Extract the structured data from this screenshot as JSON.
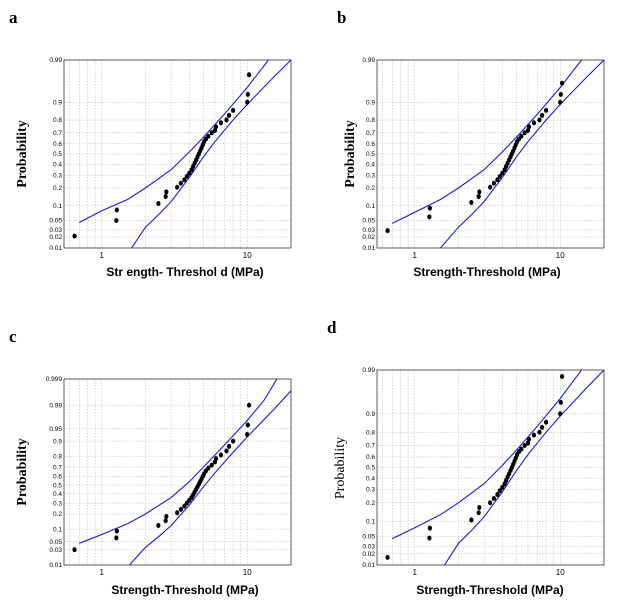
{
  "chart_data": [
    {
      "type": "scatter",
      "panel_label": "a",
      "ylabel": "Probability",
      "ylabel_weight": "bold",
      "xlabel": "Str ength- Threshol d (MPa)",
      "xscale": "log",
      "yscale": "probability",
      "xlim": [
        0.55,
        20
      ],
      "ylim": [
        0.01,
        0.99
      ],
      "grid": true,
      "x_ticks": [
        "1",
        "10"
      ],
      "y_ticks": [
        "0.01",
        "0.02",
        "0.03",
        "0.05",
        "0.1",
        "0.2",
        "0.3",
        "0.4",
        "0.5",
        "0.6",
        "0.7",
        "0.8",
        "0.9",
        "0.99"
      ],
      "points": [
        {
          "x": 0.65,
          "y": 0.021
        },
        {
          "x": 1.26,
          "y": 0.05
        },
        {
          "x": 1.27,
          "y": 0.083
        },
        {
          "x": 2.45,
          "y": 0.11
        },
        {
          "x": 2.75,
          "y": 0.146
        },
        {
          "x": 2.78,
          "y": 0.174
        },
        {
          "x": 3.3,
          "y": 0.205
        },
        {
          "x": 3.5,
          "y": 0.235
        },
        {
          "x": 3.7,
          "y": 0.262
        },
        {
          "x": 3.85,
          "y": 0.29
        },
        {
          "x": 4.0,
          "y": 0.318
        },
        {
          "x": 4.15,
          "y": 0.348
        },
        {
          "x": 4.25,
          "y": 0.38
        },
        {
          "x": 4.35,
          "y": 0.41
        },
        {
          "x": 4.45,
          "y": 0.44
        },
        {
          "x": 4.55,
          "y": 0.47
        },
        {
          "x": 4.65,
          "y": 0.5
        },
        {
          "x": 4.75,
          "y": 0.53
        },
        {
          "x": 4.85,
          "y": 0.56
        },
        {
          "x": 4.95,
          "y": 0.59
        },
        {
          "x": 5.05,
          "y": 0.62
        },
        {
          "x": 5.2,
          "y": 0.645
        },
        {
          "x": 5.4,
          "y": 0.67
        },
        {
          "x": 5.7,
          "y": 0.7
        },
        {
          "x": 6.0,
          "y": 0.72
        },
        {
          "x": 6.1,
          "y": 0.75
        },
        {
          "x": 6.6,
          "y": 0.78
        },
        {
          "x": 7.2,
          "y": 0.8
        },
        {
          "x": 7.5,
          "y": 0.83
        },
        {
          "x": 8.0,
          "y": 0.86
        },
        {
          "x": 10.0,
          "y": 0.9
        },
        {
          "x": 10.1,
          "y": 0.93
        },
        {
          "x": 10.3,
          "y": 0.975
        }
      ],
      "band_upper": [
        {
          "x": 0.7,
          "y": 0.045
        },
        {
          "x": 1.0,
          "y": 0.08
        },
        {
          "x": 1.5,
          "y": 0.13
        },
        {
          "x": 2.0,
          "y": 0.2
        },
        {
          "x": 3.0,
          "y": 0.35
        },
        {
          "x": 4.0,
          "y": 0.52
        },
        {
          "x": 5.0,
          "y": 0.66
        },
        {
          "x": 7.0,
          "y": 0.84
        },
        {
          "x": 10.0,
          "y": 0.95
        },
        {
          "x": 14.0,
          "y": 0.99
        }
      ],
      "band_lower": [
        {
          "x": 1.6,
          "y": 0.01
        },
        {
          "x": 2.0,
          "y": 0.035
        },
        {
          "x": 2.5,
          "y": 0.07
        },
        {
          "x": 3.0,
          "y": 0.12
        },
        {
          "x": 4.0,
          "y": 0.28
        },
        {
          "x": 5.0,
          "y": 0.47
        },
        {
          "x": 6.0,
          "y": 0.62
        },
        {
          "x": 8.0,
          "y": 0.8
        },
        {
          "x": 10.0,
          "y": 0.89
        },
        {
          "x": 15.0,
          "y": 0.97
        },
        {
          "x": 20.0,
          "y": 0.99
        }
      ]
    },
    {
      "type": "scatter",
      "panel_label": "b",
      "ylabel": "Probability",
      "ylabel_weight": "bold",
      "xlabel": "Strength-Threshold (MPa)",
      "xscale": "log",
      "yscale": "probability",
      "xlim": [
        0.55,
        20
      ],
      "ylim": [
        0.01,
        0.99
      ],
      "grid": true,
      "x_ticks": [
        "1",
        "10"
      ],
      "y_ticks": [
        "0.01",
        "0.02",
        "0.03",
        "0.05",
        "0.1",
        "0.2",
        "0.3",
        "0.4",
        "0.5",
        "0.6",
        "0.7",
        "0.8",
        "0.9",
        "0.99"
      ],
      "points": [
        {
          "x": 0.65,
          "y": 0.029
        },
        {
          "x": 1.26,
          "y": 0.06
        },
        {
          "x": 1.27,
          "y": 0.09
        },
        {
          "x": 2.45,
          "y": 0.115
        },
        {
          "x": 2.75,
          "y": 0.146
        },
        {
          "x": 2.78,
          "y": 0.174
        },
        {
          "x": 3.3,
          "y": 0.205
        },
        {
          "x": 3.5,
          "y": 0.235
        },
        {
          "x": 3.7,
          "y": 0.262
        },
        {
          "x": 3.85,
          "y": 0.29
        },
        {
          "x": 4.0,
          "y": 0.318
        },
        {
          "x": 4.15,
          "y": 0.348
        },
        {
          "x": 4.25,
          "y": 0.38
        },
        {
          "x": 4.35,
          "y": 0.41
        },
        {
          "x": 4.45,
          "y": 0.44
        },
        {
          "x": 4.55,
          "y": 0.47
        },
        {
          "x": 4.65,
          "y": 0.5
        },
        {
          "x": 4.75,
          "y": 0.53
        },
        {
          "x": 4.85,
          "y": 0.56
        },
        {
          "x": 4.95,
          "y": 0.59
        },
        {
          "x": 5.05,
          "y": 0.62
        },
        {
          "x": 5.2,
          "y": 0.645
        },
        {
          "x": 5.4,
          "y": 0.67
        },
        {
          "x": 5.7,
          "y": 0.7
        },
        {
          "x": 6.0,
          "y": 0.72
        },
        {
          "x": 6.1,
          "y": 0.75
        },
        {
          "x": 6.6,
          "y": 0.78
        },
        {
          "x": 7.2,
          "y": 0.8
        },
        {
          "x": 7.5,
          "y": 0.83
        },
        {
          "x": 8.0,
          "y": 0.86
        },
        {
          "x": 10.0,
          "y": 0.9
        },
        {
          "x": 10.1,
          "y": 0.93
        },
        {
          "x": 10.3,
          "y": 0.96
        }
      ],
      "band_upper": [
        {
          "x": 0.7,
          "y": 0.043
        },
        {
          "x": 1.0,
          "y": 0.075
        },
        {
          "x": 1.5,
          "y": 0.13
        },
        {
          "x": 2.0,
          "y": 0.2
        },
        {
          "x": 3.0,
          "y": 0.35
        },
        {
          "x": 4.0,
          "y": 0.52
        },
        {
          "x": 5.0,
          "y": 0.66
        },
        {
          "x": 7.0,
          "y": 0.84
        },
        {
          "x": 10.0,
          "y": 0.95
        },
        {
          "x": 14.0,
          "y": 0.99
        }
      ],
      "band_lower": [
        {
          "x": 1.5,
          "y": 0.01
        },
        {
          "x": 2.0,
          "y": 0.035
        },
        {
          "x": 2.5,
          "y": 0.07
        },
        {
          "x": 3.0,
          "y": 0.12
        },
        {
          "x": 4.0,
          "y": 0.28
        },
        {
          "x": 5.0,
          "y": 0.47
        },
        {
          "x": 6.0,
          "y": 0.62
        },
        {
          "x": 8.0,
          "y": 0.8
        },
        {
          "x": 10.0,
          "y": 0.89
        },
        {
          "x": 15.0,
          "y": 0.97
        },
        {
          "x": 20.0,
          "y": 0.99
        }
      ]
    },
    {
      "type": "scatter",
      "panel_label": "c",
      "ylabel": "Probability",
      "ylabel_weight": "bold",
      "xlabel": "Strength-Threshold (MPa)",
      "xscale": "log",
      "yscale": "probability",
      "xlim": [
        0.55,
        20
      ],
      "ylim": [
        0.01,
        0.999
      ],
      "grid": true,
      "x_ticks": [
        "1",
        "10"
      ],
      "y_ticks": [
        "0.01",
        "0.03",
        "0.05",
        "0.1",
        "0.2",
        "0.3",
        "0.4",
        "0.5",
        "0.6",
        "0.7",
        "0.8",
        "0.9",
        "0.95",
        "0.99",
        "0.999"
      ],
      "points": [
        {
          "x": 0.65,
          "y": 0.03
        },
        {
          "x": 1.26,
          "y": 0.062
        },
        {
          "x": 1.27,
          "y": 0.09
        },
        {
          "x": 2.45,
          "y": 0.12
        },
        {
          "x": 2.75,
          "y": 0.15
        },
        {
          "x": 2.78,
          "y": 0.18
        },
        {
          "x": 3.3,
          "y": 0.21
        },
        {
          "x": 3.5,
          "y": 0.24
        },
        {
          "x": 3.7,
          "y": 0.27
        },
        {
          "x": 3.85,
          "y": 0.3
        },
        {
          "x": 4.0,
          "y": 0.33
        },
        {
          "x": 4.15,
          "y": 0.36
        },
        {
          "x": 4.25,
          "y": 0.39
        },
        {
          "x": 4.35,
          "y": 0.42
        },
        {
          "x": 4.45,
          "y": 0.45
        },
        {
          "x": 4.55,
          "y": 0.48
        },
        {
          "x": 4.65,
          "y": 0.51
        },
        {
          "x": 4.75,
          "y": 0.54
        },
        {
          "x": 4.85,
          "y": 0.57
        },
        {
          "x": 4.95,
          "y": 0.6
        },
        {
          "x": 5.05,
          "y": 0.63
        },
        {
          "x": 5.2,
          "y": 0.66
        },
        {
          "x": 5.4,
          "y": 0.69
        },
        {
          "x": 5.7,
          "y": 0.72
        },
        {
          "x": 6.0,
          "y": 0.75
        },
        {
          "x": 6.1,
          "y": 0.78
        },
        {
          "x": 6.6,
          "y": 0.81
        },
        {
          "x": 7.2,
          "y": 0.84
        },
        {
          "x": 7.5,
          "y": 0.87
        },
        {
          "x": 8.0,
          "y": 0.9
        },
        {
          "x": 10.0,
          "y": 0.93
        },
        {
          "x": 10.1,
          "y": 0.96
        },
        {
          "x": 10.3,
          "y": 0.99
        }
      ],
      "band_upper": [
        {
          "x": 0.7,
          "y": 0.045
        },
        {
          "x": 1.0,
          "y": 0.075
        },
        {
          "x": 1.5,
          "y": 0.13
        },
        {
          "x": 2.0,
          "y": 0.2
        },
        {
          "x": 3.0,
          "y": 0.36
        },
        {
          "x": 4.0,
          "y": 0.54
        },
        {
          "x": 5.0,
          "y": 0.7
        },
        {
          "x": 7.0,
          "y": 0.88
        },
        {
          "x": 10.0,
          "y": 0.97
        },
        {
          "x": 13.0,
          "y": 0.993
        },
        {
          "x": 16.0,
          "y": 0.999
        }
      ],
      "band_lower": [
        {
          "x": 1.55,
          "y": 0.01
        },
        {
          "x": 2.0,
          "y": 0.035
        },
        {
          "x": 2.5,
          "y": 0.07
        },
        {
          "x": 3.0,
          "y": 0.12
        },
        {
          "x": 4.0,
          "y": 0.28
        },
        {
          "x": 5.0,
          "y": 0.48
        },
        {
          "x": 6.0,
          "y": 0.64
        },
        {
          "x": 8.0,
          "y": 0.83
        },
        {
          "x": 10.0,
          "y": 0.92
        },
        {
          "x": 15.0,
          "y": 0.985
        },
        {
          "x": 20.0,
          "y": 0.997
        }
      ]
    },
    {
      "type": "scatter",
      "panel_label": "d",
      "ylabel": "Probability",
      "ylabel_weight": "normal",
      "xlabel": "Strength-Threshold (MPa)",
      "xscale": "log",
      "yscale": "probability",
      "xlim": [
        0.55,
        20
      ],
      "ylim": [
        0.01,
        0.99
      ],
      "grid": true,
      "x_ticks": [
        "1",
        "10"
      ],
      "y_ticks": [
        "0.01",
        "0.02",
        "0.03",
        "0.05",
        "0.1",
        "0.2",
        "0.3",
        "0.4",
        "0.5",
        "0.6",
        "0.7",
        "0.8",
        "0.9",
        "0.99"
      ],
      "points": [
        {
          "x": 0.65,
          "y": 0.016
        },
        {
          "x": 1.26,
          "y": 0.046
        },
        {
          "x": 1.27,
          "y": 0.074
        },
        {
          "x": 2.45,
          "y": 0.105
        },
        {
          "x": 2.75,
          "y": 0.14
        },
        {
          "x": 2.78,
          "y": 0.17
        },
        {
          "x": 3.3,
          "y": 0.2
        },
        {
          "x": 3.5,
          "y": 0.23
        },
        {
          "x": 3.7,
          "y": 0.26
        },
        {
          "x": 3.85,
          "y": 0.29
        },
        {
          "x": 4.0,
          "y": 0.318
        },
        {
          "x": 4.15,
          "y": 0.348
        },
        {
          "x": 4.25,
          "y": 0.38
        },
        {
          "x": 4.35,
          "y": 0.41
        },
        {
          "x": 4.45,
          "y": 0.44
        },
        {
          "x": 4.55,
          "y": 0.47
        },
        {
          "x": 4.65,
          "y": 0.5
        },
        {
          "x": 4.75,
          "y": 0.53
        },
        {
          "x": 4.85,
          "y": 0.56
        },
        {
          "x": 4.95,
          "y": 0.59
        },
        {
          "x": 5.05,
          "y": 0.62
        },
        {
          "x": 5.2,
          "y": 0.645
        },
        {
          "x": 5.4,
          "y": 0.67
        },
        {
          "x": 5.7,
          "y": 0.7
        },
        {
          "x": 6.0,
          "y": 0.72
        },
        {
          "x": 6.1,
          "y": 0.75
        },
        {
          "x": 6.6,
          "y": 0.78
        },
        {
          "x": 7.2,
          "y": 0.8
        },
        {
          "x": 7.5,
          "y": 0.83
        },
        {
          "x": 8.0,
          "y": 0.86
        },
        {
          "x": 10.0,
          "y": 0.9
        },
        {
          "x": 10.1,
          "y": 0.94
        },
        {
          "x": 10.3,
          "y": 0.985
        }
      ],
      "band_upper": [
        {
          "x": 0.7,
          "y": 0.045
        },
        {
          "x": 1.0,
          "y": 0.075
        },
        {
          "x": 1.5,
          "y": 0.13
        },
        {
          "x": 2.0,
          "y": 0.2
        },
        {
          "x": 3.0,
          "y": 0.35
        },
        {
          "x": 4.0,
          "y": 0.52
        },
        {
          "x": 5.0,
          "y": 0.66
        },
        {
          "x": 7.0,
          "y": 0.84
        },
        {
          "x": 10.0,
          "y": 0.95
        },
        {
          "x": 14.0,
          "y": 0.99
        }
      ],
      "band_lower": [
        {
          "x": 1.6,
          "y": 0.01
        },
        {
          "x": 2.0,
          "y": 0.035
        },
        {
          "x": 2.5,
          "y": 0.07
        },
        {
          "x": 3.0,
          "y": 0.12
        },
        {
          "x": 4.0,
          "y": 0.28
        },
        {
          "x": 5.0,
          "y": 0.47
        },
        {
          "x": 6.0,
          "y": 0.62
        },
        {
          "x": 8.0,
          "y": 0.8
        },
        {
          "x": 10.0,
          "y": 0.89
        },
        {
          "x": 15.0,
          "y": 0.97
        },
        {
          "x": 20.0,
          "y": 0.99
        }
      ]
    }
  ],
  "colors": {
    "band": "#1a1adc",
    "points": "#000000",
    "grid": "#b3b3b3"
  }
}
